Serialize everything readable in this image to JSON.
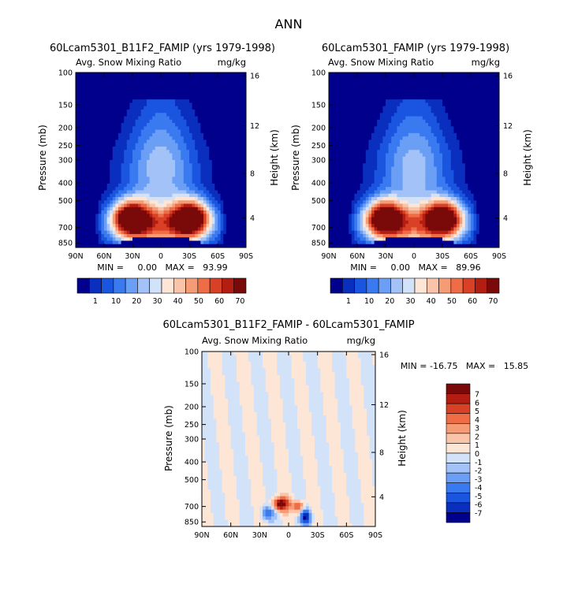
{
  "page_title": "ANN",
  "colors": {
    "contour_levels_abs": [
      "#00008c",
      "#0a2fbe",
      "#1a55e0",
      "#3a7af0",
      "#6b9ef5",
      "#a3c2f7",
      "#d2e2f8",
      "#fde6d6",
      "#fac4a8",
      "#f59c77",
      "#ee6d47",
      "#d94126",
      "#b41e12",
      "#7a0a0a"
    ],
    "contour_levels_diff": [
      "#00008c",
      "#0a2fbe",
      "#1a55e0",
      "#3a7af0",
      "#6b9ef5",
      "#a3c2f7",
      "#d2e2f8",
      "#fde6d6",
      "#fac4a8",
      "#f59c77",
      "#ee6d47",
      "#d94126",
      "#b41e12",
      "#7a0a0a"
    ]
  },
  "chart_data": [
    {
      "type": "heatmap",
      "title": "60Lcam5301_B11F2_FAMIP (yrs 1979-1998)",
      "subtitle_left": "Avg. Snow Mixing Ratio",
      "subtitle_right": "mg/kg",
      "ylabel": "Pressure (mb)",
      "ylabel_right": "Height (km)",
      "x_ticks": [
        "90N",
        "60N",
        "30N",
        "0",
        "30S",
        "60S",
        "90S"
      ],
      "y_ticks": [
        "100",
        "150",
        "200",
        "250",
        "300",
        "400",
        "500",
        "700",
        "850"
      ],
      "y_right_ticks": [
        "16",
        "12",
        "8",
        "4"
      ],
      "ylim": [
        100,
        900
      ],
      "min_max_text": "MIN =     0.00   MAX =   93.99",
      "min": 0.0,
      "max": 93.99,
      "colorbar_labels": [
        "1",
        "10",
        "20",
        "30",
        "40",
        "50",
        "60",
        "70"
      ]
    },
    {
      "type": "heatmap",
      "title": "60Lcam5301_FAMIP (yrs 1979-1998)",
      "subtitle_left": "Avg. Snow Mixing Ratio",
      "subtitle_right": "mg/kg",
      "ylabel": "Pressure (mb)",
      "ylabel_right": "Height (km)",
      "x_ticks": [
        "90N",
        "60N",
        "30N",
        "0",
        "30S",
        "60S",
        "90S"
      ],
      "y_ticks": [
        "100",
        "150",
        "200",
        "250",
        "300",
        "400",
        "500",
        "700",
        "850"
      ],
      "y_right_ticks": [
        "16",
        "12",
        "8",
        "4"
      ],
      "ylim": [
        100,
        900
      ],
      "min_max_text": "MIN =     0.00   MAX =   89.96",
      "min": 0.0,
      "max": 89.96,
      "colorbar_labels": [
        "1",
        "10",
        "20",
        "30",
        "40",
        "50",
        "60",
        "70"
      ]
    },
    {
      "type": "heatmap",
      "title": "60Lcam5301_B11F2_FAMIP - 60Lcam5301_FAMIP",
      "subtitle_left": "Avg. Snow Mixing Ratio",
      "subtitle_right": "mg/kg",
      "ylabel": "Pressure (mb)",
      "ylabel_right": "Height (km)",
      "x_ticks": [
        "90N",
        "60N",
        "30N",
        "0",
        "30S",
        "60S",
        "90S"
      ],
      "y_ticks": [
        "100",
        "150",
        "200",
        "250",
        "300",
        "400",
        "500",
        "700",
        "850"
      ],
      "y_right_ticks": [
        "16",
        "12",
        "8",
        "4"
      ],
      "ylim": [
        100,
        900
      ],
      "min_max_text": "MIN = -16.75   MAX =   15.85",
      "min": -16.75,
      "max": 15.85,
      "colorbar_labels": [
        "7",
        "6",
        "5",
        "4",
        "3",
        "2",
        "1",
        "0",
        "-1",
        "-2",
        "-3",
        "-4",
        "-5",
        "-6",
        "-7"
      ]
    }
  ]
}
